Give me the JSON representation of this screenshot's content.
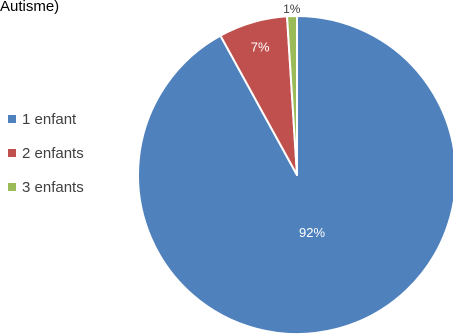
{
  "chart_data": {
    "type": "pie",
    "title": "Autisme)",
    "legend_position": "left",
    "slices": [
      {
        "label": "1 enfant",
        "value": 92,
        "value_label": "92%",
        "color": "#4F81BD"
      },
      {
        "label": "2 enfants",
        "value": 7,
        "value_label": "7%",
        "color": "#C0504D"
      },
      {
        "label": "3 enfants",
        "value": 1,
        "value_label": "1%",
        "color": "#9BBB59"
      }
    ]
  }
}
